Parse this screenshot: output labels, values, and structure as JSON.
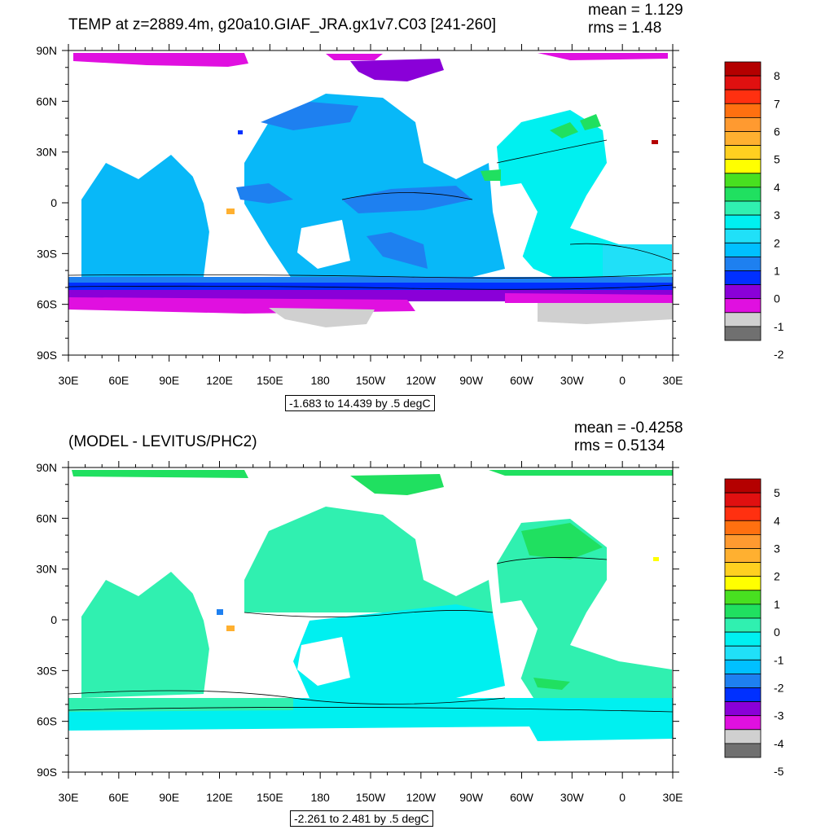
{
  "panels": [
    {
      "title": "TEMP at z=2889.4m, g20a10.GIAF_JRA.gx1v7.C03 [241-260]",
      "mean": "mean = 1.129",
      "rms": "rms = 1.48",
      "range_label": "-1.683 to 14.439 by .5 degC",
      "lat_labels": [
        "90N",
        "60N",
        "30N",
        "0",
        "30S",
        "60S",
        "90S"
      ],
      "lon_labels": [
        "30E",
        "60E",
        "90E",
        "120E",
        "150E",
        "180",
        "150W",
        "120W",
        "90W",
        "60W",
        "30W",
        "0",
        "30E"
      ],
      "colorbar": {
        "labels": [
          "8",
          "7",
          "6",
          "5",
          "4",
          "3",
          "2",
          "1",
          "0",
          "-1",
          "-2"
        ],
        "colors": [
          "#b40000",
          "#e01010",
          "#ff3010",
          "#ff7010",
          "#ff9a30",
          "#ffb030",
          "#ffd020",
          "#ffff00",
          "#48e020",
          "#20e060",
          "#30f0b0",
          "#00f0f0",
          "#20e0f8",
          "#00c0ff",
          "#1e80f0",
          "#0030ff",
          "#8a00d8",
          "#e010e0",
          "#d0d0d0",
          "#707070"
        ]
      },
      "map": {
        "ocean_base": "#08b8f8",
        "features": [
          {
            "name": "arctic-band",
            "color": "#e010e0"
          },
          {
            "name": "north-pacific",
            "color": "#1e80f0"
          },
          {
            "name": "equatorial-pacific",
            "color": "#1e80f0"
          },
          {
            "name": "southern-ocean-blue",
            "color": "#0030ff"
          },
          {
            "name": "southern-ocean-purple",
            "color": "#8a00d8"
          },
          {
            "name": "southern-ocean-magenta",
            "color": "#e010e0"
          },
          {
            "name": "antarctic-shelf",
            "color": "#d0d0d0"
          },
          {
            "name": "atlantic",
            "color": "#00f0f0"
          },
          {
            "name": "north-atlantic-core",
            "color": "#20e060"
          }
        ]
      }
    },
    {
      "title": "(MODEL - LEVITUS/PHC2)",
      "mean": "mean = -0.4258",
      "rms": "rms = 0.5134",
      "range_label": "-2.261 to 2.481 by .5 degC",
      "lat_labels": [
        "90N",
        "60N",
        "30N",
        "0",
        "30S",
        "60S",
        "90S"
      ],
      "lon_labels": [
        "30E",
        "60E",
        "90E",
        "120E",
        "150E",
        "180",
        "150W",
        "120W",
        "90W",
        "60W",
        "30W",
        "0",
        "30E"
      ],
      "colorbar": {
        "labels": [
          "5",
          "4",
          "3",
          "2",
          "1",
          "0",
          "-1",
          "-2",
          "-3",
          "-4",
          "-5"
        ],
        "colors": [
          "#b40000",
          "#e01010",
          "#ff3010",
          "#ff7010",
          "#ff9a30",
          "#ffb030",
          "#ffd020",
          "#ffff00",
          "#48e020",
          "#20e060",
          "#30f0b0",
          "#00f0f0",
          "#20e0f8",
          "#00c0ff",
          "#1e80f0",
          "#0030ff",
          "#8a00d8",
          "#e010e0",
          "#d0d0d0",
          "#707070"
        ]
      },
      "map": {
        "ocean_base": "#30f0b0",
        "features": [
          {
            "name": "arctic-band",
            "color": "#20e060"
          },
          {
            "name": "pacific-cyan",
            "color": "#00f0f0"
          },
          {
            "name": "indian-southern",
            "color": "#00f0f0"
          },
          {
            "name": "north-atlantic-core",
            "color": "#20e060"
          }
        ]
      }
    }
  ]
}
